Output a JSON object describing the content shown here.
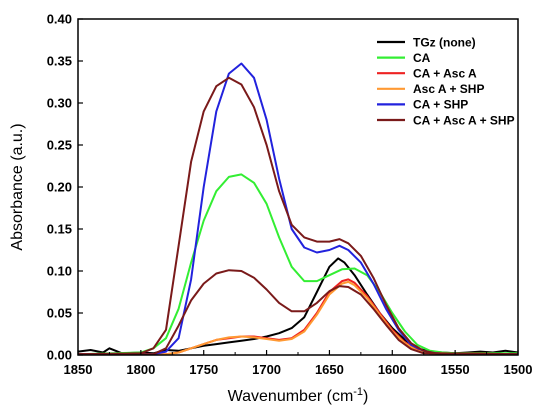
{
  "chart_data": {
    "type": "line",
    "title": "",
    "xlabel": "Wavenumber (cm",
    "xlabel_sup": "-1",
    "xlabel_close": ")",
    "ylabel": "Absorbance (a.u.)",
    "xlim": [
      1850,
      1500
    ],
    "ylim": [
      0,
      0.4
    ],
    "x_ticks": [
      1850,
      1800,
      1750,
      1700,
      1650,
      1600,
      1550,
      1500
    ],
    "x_tick_labels": [
      "1850",
      "1800",
      "1750",
      "1700",
      "1650",
      "1600",
      "1550",
      "1500"
    ],
    "y_ticks": [
      0,
      0.05,
      0.1,
      0.15,
      0.2,
      0.25,
      0.3,
      0.35,
      0.4
    ],
    "y_tick_labels": [
      "0.00",
      "0.05",
      "0.10",
      "0.15",
      "0.20",
      "0.25",
      "0.30",
      "0.35",
      "0.40"
    ],
    "grid": false,
    "legend_position": "top-right",
    "series": [
      {
        "name": "TGz (none)",
        "color": "#000000",
        "points": [
          [
            1850,
            0.004
          ],
          [
            1840,
            0.006
          ],
          [
            1830,
            0.003
          ],
          [
            1825,
            0.008
          ],
          [
            1815,
            0.002
          ],
          [
            1800,
            0.003
          ],
          [
            1790,
            0.002
          ],
          [
            1780,
            0.006
          ],
          [
            1770,
            0.005
          ],
          [
            1760,
            0.008
          ],
          [
            1750,
            0.011
          ],
          [
            1740,
            0.013
          ],
          [
            1730,
            0.015
          ],
          [
            1720,
            0.017
          ],
          [
            1710,
            0.019
          ],
          [
            1700,
            0.022
          ],
          [
            1690,
            0.026
          ],
          [
            1680,
            0.032
          ],
          [
            1670,
            0.045
          ],
          [
            1660,
            0.075
          ],
          [
            1650,
            0.105
          ],
          [
            1643,
            0.115
          ],
          [
            1638,
            0.11
          ],
          [
            1630,
            0.095
          ],
          [
            1620,
            0.072
          ],
          [
            1610,
            0.05
          ],
          [
            1600,
            0.032
          ],
          [
            1590,
            0.018
          ],
          [
            1580,
            0.008
          ],
          [
            1570,
            0.004
          ],
          [
            1560,
            0.003
          ],
          [
            1550,
            0.002
          ],
          [
            1540,
            0.003
          ],
          [
            1530,
            0.004
          ],
          [
            1520,
            0.003
          ],
          [
            1510,
            0.005
          ],
          [
            1500,
            0.003
          ]
        ]
      },
      {
        "name": "CA",
        "color": "#33ee33",
        "points": [
          [
            1850,
            0.001
          ],
          [
            1800,
            0.003
          ],
          [
            1790,
            0.008
          ],
          [
            1780,
            0.02
          ],
          [
            1770,
            0.055
          ],
          [
            1760,
            0.11
          ],
          [
            1750,
            0.16
          ],
          [
            1740,
            0.195
          ],
          [
            1730,
            0.212
          ],
          [
            1720,
            0.215
          ],
          [
            1710,
            0.205
          ],
          [
            1700,
            0.18
          ],
          [
            1690,
            0.14
          ],
          [
            1680,
            0.105
          ],
          [
            1670,
            0.088
          ],
          [
            1660,
            0.088
          ],
          [
            1650,
            0.095
          ],
          [
            1640,
            0.102
          ],
          [
            1630,
            0.103
          ],
          [
            1620,
            0.095
          ],
          [
            1610,
            0.075
          ],
          [
            1600,
            0.05
          ],
          [
            1590,
            0.028
          ],
          [
            1580,
            0.012
          ],
          [
            1570,
            0.005
          ],
          [
            1560,
            0.003
          ],
          [
            1550,
            0.002
          ],
          [
            1500,
            0.002
          ]
        ]
      },
      {
        "name": "CA + Asc A",
        "color": "#ee2222",
        "points": [
          [
            1850,
            0.001
          ],
          [
            1780,
            0.001
          ],
          [
            1770,
            0.003
          ],
          [
            1760,
            0.008
          ],
          [
            1750,
            0.013
          ],
          [
            1740,
            0.018
          ],
          [
            1730,
            0.02
          ],
          [
            1720,
            0.022
          ],
          [
            1710,
            0.022
          ],
          [
            1700,
            0.02
          ],
          [
            1690,
            0.018
          ],
          [
            1680,
            0.02
          ],
          [
            1670,
            0.03
          ],
          [
            1660,
            0.05
          ],
          [
            1650,
            0.075
          ],
          [
            1640,
            0.088
          ],
          [
            1635,
            0.09
          ],
          [
            1630,
            0.086
          ],
          [
            1620,
            0.07
          ],
          [
            1610,
            0.05
          ],
          [
            1600,
            0.03
          ],
          [
            1590,
            0.015
          ],
          [
            1580,
            0.006
          ],
          [
            1570,
            0.002
          ],
          [
            1500,
            0.001
          ]
        ]
      },
      {
        "name": "Asc A + SHP",
        "color": "#ff9933",
        "points": [
          [
            1850,
            0.001
          ],
          [
            1780,
            0.001
          ],
          [
            1770,
            0.003
          ],
          [
            1760,
            0.008
          ],
          [
            1750,
            0.013
          ],
          [
            1740,
            0.018
          ],
          [
            1730,
            0.021
          ],
          [
            1720,
            0.022
          ],
          [
            1710,
            0.021
          ],
          [
            1700,
            0.019
          ],
          [
            1690,
            0.017
          ],
          [
            1680,
            0.019
          ],
          [
            1670,
            0.028
          ],
          [
            1660,
            0.048
          ],
          [
            1650,
            0.072
          ],
          [
            1640,
            0.085
          ],
          [
            1635,
            0.087
          ],
          [
            1630,
            0.083
          ],
          [
            1620,
            0.068
          ],
          [
            1610,
            0.048
          ],
          [
            1600,
            0.028
          ],
          [
            1590,
            0.014
          ],
          [
            1580,
            0.005
          ],
          [
            1570,
            0.002
          ],
          [
            1500,
            0.001
          ]
        ]
      },
      {
        "name": "CA + SHP",
        "color": "#2222dd",
        "points": [
          [
            1850,
            0.001
          ],
          [
            1790,
            0.001
          ],
          [
            1780,
            0.004
          ],
          [
            1770,
            0.02
          ],
          [
            1760,
            0.09
          ],
          [
            1750,
            0.2
          ],
          [
            1740,
            0.29
          ],
          [
            1730,
            0.335
          ],
          [
            1720,
            0.347
          ],
          [
            1710,
            0.33
          ],
          [
            1700,
            0.28
          ],
          [
            1690,
            0.21
          ],
          [
            1680,
            0.15
          ],
          [
            1670,
            0.128
          ],
          [
            1660,
            0.122
          ],
          [
            1650,
            0.125
          ],
          [
            1642,
            0.13
          ],
          [
            1635,
            0.125
          ],
          [
            1625,
            0.11
          ],
          [
            1615,
            0.085
          ],
          [
            1605,
            0.055
          ],
          [
            1595,
            0.03
          ],
          [
            1585,
            0.012
          ],
          [
            1575,
            0.005
          ],
          [
            1565,
            0.002
          ],
          [
            1550,
            0.001
          ],
          [
            1500,
            0.001
          ]
        ]
      },
      {
        "name": "CA + Asc A + SHP",
        "color": "#7a1a1a",
        "points": [
          [
            1850,
            0.001
          ],
          [
            1800,
            0.002
          ],
          [
            1790,
            0.008
          ],
          [
            1780,
            0.03
          ],
          [
            1770,
            0.13
          ],
          [
            1760,
            0.23
          ],
          [
            1750,
            0.29
          ],
          [
            1740,
            0.32
          ],
          [
            1730,
            0.33
          ],
          [
            1720,
            0.322
          ],
          [
            1710,
            0.295
          ],
          [
            1700,
            0.25
          ],
          [
            1690,
            0.195
          ],
          [
            1680,
            0.155
          ],
          [
            1670,
            0.14
          ],
          [
            1660,
            0.135
          ],
          [
            1650,
            0.135
          ],
          [
            1642,
            0.138
          ],
          [
            1635,
            0.133
          ],
          [
            1625,
            0.118
          ],
          [
            1615,
            0.092
          ],
          [
            1605,
            0.06
          ],
          [
            1595,
            0.032
          ],
          [
            1585,
            0.014
          ],
          [
            1575,
            0.005
          ],
          [
            1565,
            0.002
          ],
          [
            1550,
            0.001
          ],
          [
            1500,
            0.001
          ]
        ]
      },
      {
        "name": "",
        "color": "#7a1a1a",
        "legend": false,
        "points": [
          [
            1850,
            0.001
          ],
          [
            1790,
            0.001
          ],
          [
            1780,
            0.008
          ],
          [
            1770,
            0.035
          ],
          [
            1760,
            0.065
          ],
          [
            1750,
            0.085
          ],
          [
            1740,
            0.097
          ],
          [
            1730,
            0.101
          ],
          [
            1720,
            0.1
          ],
          [
            1710,
            0.092
          ],
          [
            1700,
            0.078
          ],
          [
            1690,
            0.062
          ],
          [
            1680,
            0.052
          ],
          [
            1670,
            0.052
          ],
          [
            1660,
            0.062
          ],
          [
            1650,
            0.076
          ],
          [
            1642,
            0.082
          ],
          [
            1635,
            0.081
          ],
          [
            1625,
            0.072
          ],
          [
            1615,
            0.055
          ],
          [
            1605,
            0.036
          ],
          [
            1595,
            0.018
          ],
          [
            1585,
            0.007
          ],
          [
            1575,
            0.002
          ],
          [
            1500,
            0.001
          ]
        ]
      }
    ]
  }
}
